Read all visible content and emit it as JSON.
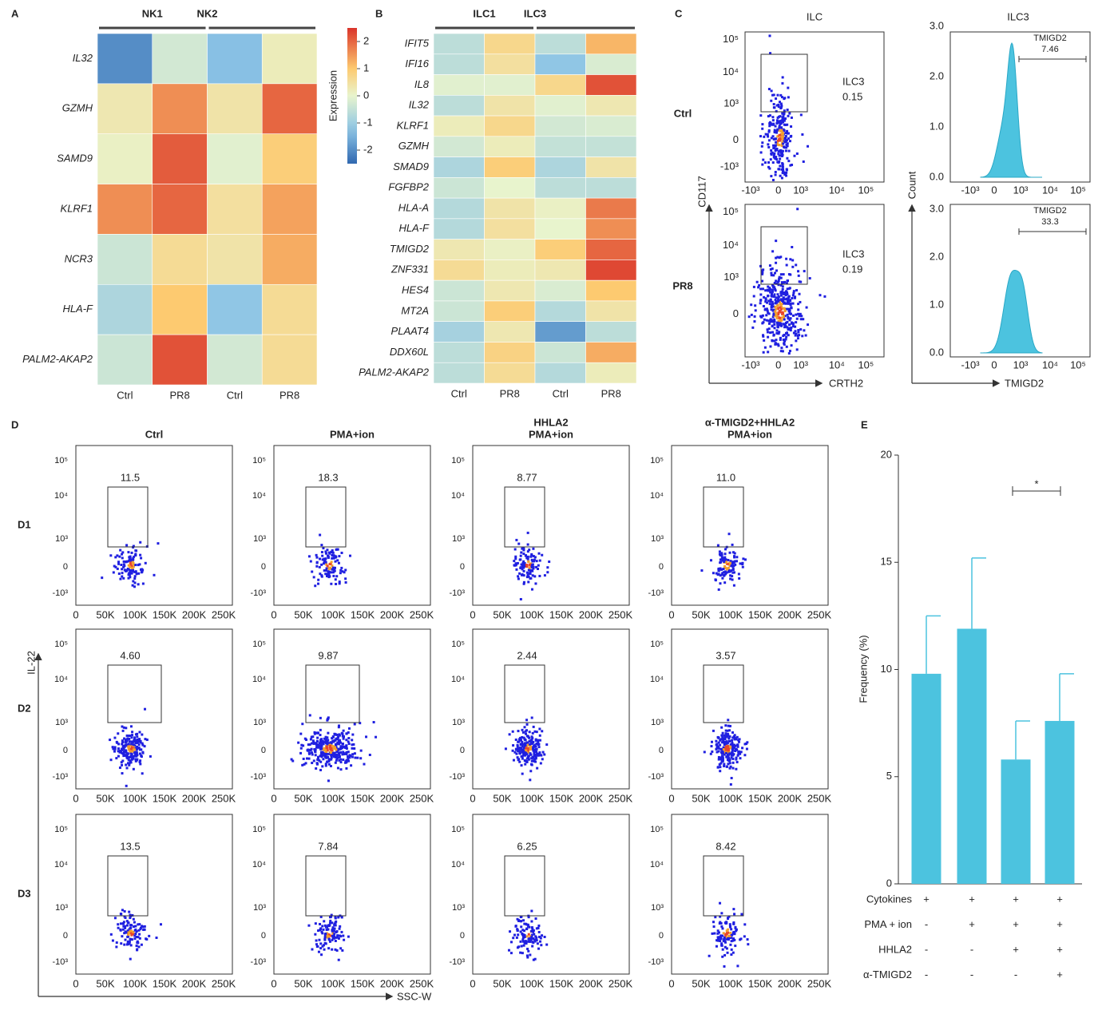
{
  "panel_letters": [
    "A",
    "B",
    "C",
    "D",
    "E"
  ],
  "heatmap_a": {
    "groups": [
      "NK1",
      "NK2"
    ],
    "columns": [
      "Ctrl",
      "PR8",
      "Ctrl",
      "PR8"
    ],
    "rows": [
      "IL32",
      "GZMH",
      "SAMD9",
      "KLRF1",
      "NCR3",
      "HLA-F",
      "PALM2-AKAP2"
    ],
    "values": [
      [
        -2.0,
        -0.3,
        -1.3,
        0.2
      ],
      [
        0.3,
        1.6,
        0.4,
        2.0
      ],
      [
        0.1,
        2.1,
        -0.1,
        0.9
      ],
      [
        1.6,
        2.0,
        0.5,
        1.4
      ],
      [
        -0.4,
        0.6,
        0.4,
        1.3
      ],
      [
        -0.8,
        1.0,
        -1.2,
        0.6
      ],
      [
        -0.4,
        2.2,
        -0.3,
        0.6
      ]
    ]
  },
  "colorbar": {
    "label": "Expression",
    "clim": [
      -2.5,
      2.5
    ],
    "ticks": [
      2,
      1,
      0,
      -1,
      -2
    ]
  },
  "heatmap_b": {
    "groups": [
      "ILC1",
      "ILC3"
    ],
    "columns": [
      "Ctrl",
      "PR8",
      "Ctrl",
      "PR8"
    ],
    "rows": [
      "IFIT5",
      "IFI16",
      "IL8",
      "IL32",
      "KLRF1",
      "GZMH",
      "SMAD9",
      "FGFBP2",
      "HLA-A",
      "HLA-F",
      "TMIGD2",
      "ZNF331",
      "HES4",
      "MT2A",
      "PLAAT4",
      "DDX60L",
      "PALM2-AKAP2"
    ],
    "values": [
      [
        -0.6,
        0.7,
        -0.6,
        1.2
      ],
      [
        -0.6,
        0.5,
        -1.2,
        -0.2
      ],
      [
        -0.1,
        -0.1,
        0.7,
        2.2
      ],
      [
        -0.6,
        0.4,
        -0.1,
        0.3
      ],
      [
        0.2,
        0.7,
        -0.3,
        -0.2
      ],
      [
        -0.3,
        0.2,
        -0.5,
        -0.5
      ],
      [
        -0.8,
        0.9,
        -0.8,
        0.4
      ],
      [
        -0.4,
        0.0,
        -0.6,
        -0.6
      ],
      [
        -0.7,
        0.4,
        0.1,
        1.8
      ],
      [
        -0.7,
        0.5,
        0.0,
        1.6
      ],
      [
        0.3,
        0.1,
        0.9,
        2.0
      ],
      [
        0.6,
        0.2,
        0.3,
        2.3
      ],
      [
        -0.4,
        0.3,
        -0.2,
        1.0
      ],
      [
        -0.4,
        0.9,
        -0.7,
        0.4
      ],
      [
        -0.9,
        0.3,
        -1.8,
        -0.6
      ],
      [
        -0.6,
        0.8,
        -0.4,
        1.3
      ],
      [
        -0.6,
        0.6,
        -0.7,
        0.2
      ]
    ]
  },
  "panel_c": {
    "title_left": "ILC",
    "title_right": "ILC3",
    "rows": [
      "Ctrl",
      "PR8"
    ],
    "gates": [
      {
        "name": "ILC3",
        "value": "0.15"
      },
      {
        "name": "ILC3",
        "value": "0.19"
      }
    ],
    "hist_gates": [
      {
        "name": "TMIGD2",
        "value": "7.46"
      },
      {
        "name": "TMIGD2",
        "value": "33.3"
      }
    ],
    "y_label": "CD117",
    "x_label": "CRTH2",
    "hist_y_label": "Count",
    "hist_x_label": "TMIGD2",
    "log_y_labels": [
      "10⁵",
      "10⁴",
      "10³",
      "0",
      "-10³"
    ],
    "log_x_labels": [
      "-10³",
      "0",
      "10³",
      "10⁴",
      "10⁵"
    ],
    "hist_yticks": [
      {
        "value": 3,
        "label": "3.0"
      },
      {
        "value": 2,
        "label": "2.0"
      },
      {
        "value": 1,
        "label": "1.0"
      },
      {
        "value": 0,
        "label": "0.0"
      }
    ]
  },
  "panel_d": {
    "columns": [
      [
        "Ctrl"
      ],
      [
        "PMA+ion"
      ],
      [
        "HHLA2",
        "PMA+ion"
      ],
      [
        "α-TMIGD2+HHLA2",
        "PMA+ion"
      ]
    ],
    "rows": [
      "D1",
      "D2",
      "D3"
    ],
    "gates": [
      [
        "11.5",
        "18.3",
        "8.77",
        "11.0"
      ],
      [
        "4.60",
        "9.87",
        "2.44",
        "3.57"
      ],
      [
        "13.5",
        "7.84",
        "6.25",
        "8.42"
      ]
    ],
    "y_label": "IL-22",
    "x_label": "SSC-W",
    "ytick_labels": [
      "10⁵",
      "10⁴",
      "10³",
      "0",
      "-10³"
    ],
    "xtick_labels": [
      "0",
      "50K",
      "100K",
      "150K",
      "200K",
      "250K"
    ]
  },
  "chart_data": {
    "type": "bar",
    "ylabel": "Frequency (%)",
    "values": [
      9.8,
      11.9,
      5.8,
      7.6
    ],
    "errors": [
      2.7,
      3.3,
      1.8,
      2.2
    ],
    "color": "#4cc3df",
    "ylim": [
      0,
      20
    ],
    "yticks": [
      0,
      5,
      10,
      15,
      20
    ],
    "significance": "*",
    "conditions": [
      {
        "name": "Cytokines",
        "marks": [
          "+",
          "+",
          "+",
          "+"
        ]
      },
      {
        "name": "PMA + ion",
        "marks": [
          "-",
          "+",
          "+",
          "+"
        ]
      },
      {
        "name": "HHLA2",
        "marks": [
          "-",
          "-",
          "+",
          "+"
        ]
      },
      {
        "name": "α-TMIGD2",
        "marks": [
          "-",
          "-",
          "-",
          "+"
        ]
      }
    ]
  }
}
